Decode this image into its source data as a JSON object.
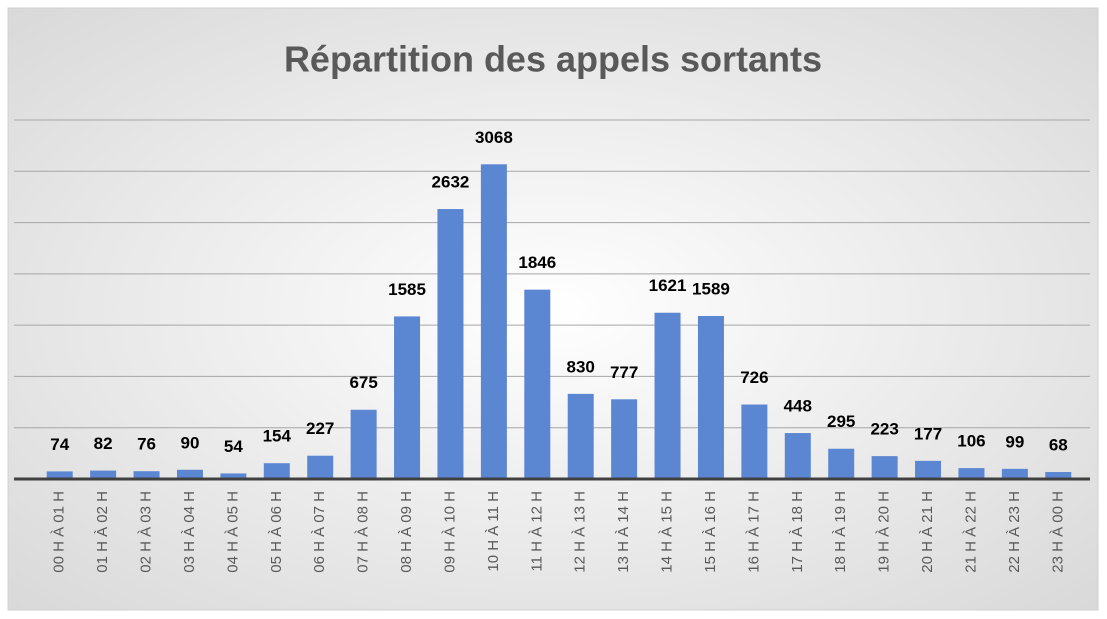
{
  "chart_data": {
    "type": "bar",
    "title": "Répartition des appels sortants",
    "categories": [
      "00 H À 01 H",
      "01 H À 02 H",
      "02 H À 03 H",
      "03 H À 04 H",
      "04 H À 05 H",
      "05 H À 06 H",
      "06 H À 07 H",
      "07 H À 08 H",
      "08 H À 09 H",
      "09 H À 10 H",
      "10 H À 11 H",
      "11 H À 12 H",
      "12 H À 13 H",
      "13 H À 14 H",
      "14 H À 15 H",
      "15 H À 16 H",
      "16 H À 17 H",
      "17 H À 18 H",
      "18 H À 19 H",
      "19 H À 20 H",
      "20 H À 21 H",
      "21 H À 22 H",
      "22 H À 23 H",
      "23 H À 00 H"
    ],
    "values": [
      74,
      82,
      76,
      90,
      54,
      154,
      227,
      675,
      1585,
      2632,
      3068,
      1846,
      830,
      777,
      1621,
      1589,
      726,
      448,
      295,
      223,
      177,
      106,
      99,
      68
    ],
    "color": "#5b86d2",
    "ylim": [
      0,
      3500
    ],
    "yticks": [
      0,
      500,
      1000,
      1500,
      2000,
      2500,
      3000,
      3500
    ],
    "grid": true
  }
}
